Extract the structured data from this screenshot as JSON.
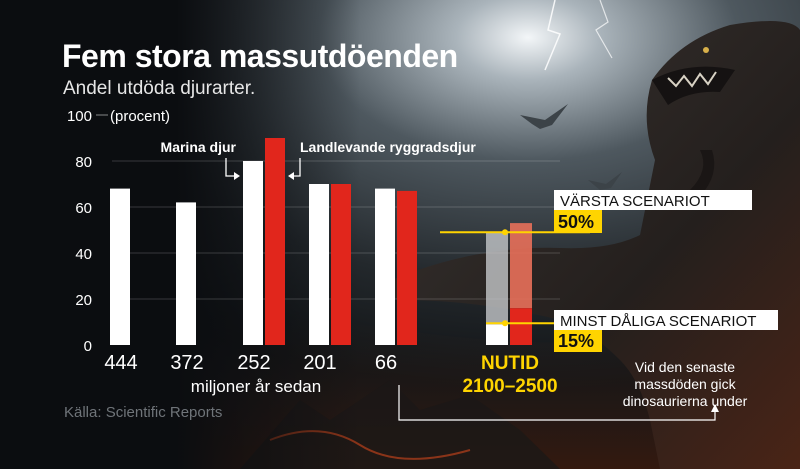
{
  "title": "Fem stora massutdöenden",
  "subtitle": "Andel utdöda djurarter.",
  "source": "Källa: Scientific Reports",
  "colors": {
    "marine": "#ffffff",
    "land": "#e1261c",
    "highlight": "#ffd400",
    "background": "#0b0d10"
  },
  "chart_data": {
    "type": "bar",
    "ylabel": "(procent)",
    "xlabel": "miljoner år sedan",
    "ylim": [
      0,
      100
    ],
    "yticks": [
      "0",
      "20",
      "40",
      "60",
      "80",
      "100"
    ],
    "grid": true,
    "categories": [
      "444",
      "372",
      "252",
      "201",
      "66"
    ],
    "series": [
      {
        "name": "Marina djur",
        "values": [
          68,
          62,
          80,
          70,
          68
        ]
      },
      {
        "name": "Landlevande ryggradsdjur",
        "values": [
          null,
          null,
          90,
          70,
          67
        ]
      }
    ],
    "future": {
      "label": "NUTID",
      "period": "2100–2500",
      "marine_range": [
        9,
        49
      ],
      "land_range": [
        16,
        53
      ],
      "worst_label": "VÄRSTA SCENARIOT",
      "worst_value": "50%",
      "best_label": "MINST DÅLIGA SCENARIOT",
      "best_value": "15%"
    },
    "annotation": "Vid den senaste massdöden gick dinosaurierna under"
  }
}
